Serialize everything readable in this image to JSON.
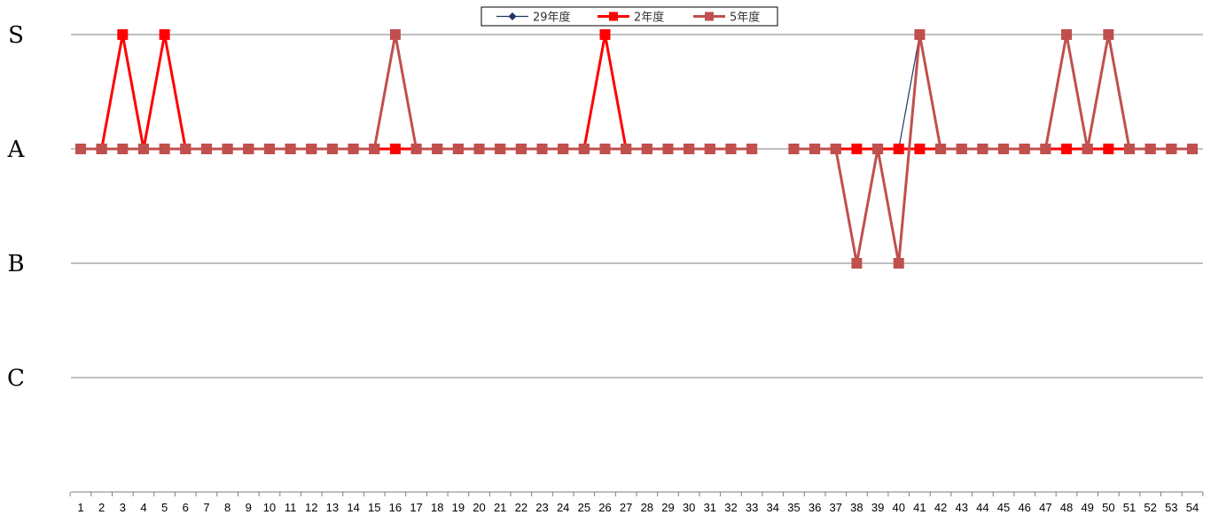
{
  "chart_data": {
    "type": "line",
    "y_categories": [
      "S",
      "A",
      "B",
      "C"
    ],
    "y_values_key": {
      "S": 3,
      "A": 2,
      "B": 1,
      "C": 0
    },
    "ylim": [
      -1,
      3
    ],
    "grid": true,
    "legend_position": "top-center",
    "x": [
      1,
      2,
      3,
      4,
      5,
      6,
      7,
      8,
      9,
      10,
      11,
      12,
      13,
      14,
      15,
      16,
      17,
      18,
      19,
      20,
      21,
      22,
      23,
      24,
      25,
      26,
      27,
      28,
      29,
      30,
      31,
      32,
      33,
      34,
      35,
      36,
      37,
      38,
      39,
      40,
      41,
      42,
      43,
      44,
      45,
      46,
      47,
      48,
      49,
      50,
      51,
      52,
      53,
      54
    ],
    "series": [
      {
        "name": "29年度",
        "color": "#1f3864",
        "marker": "diamond",
        "line_width": 1.2,
        "values": [
          2,
          2,
          2,
          2,
          2,
          2,
          2,
          2,
          2,
          2,
          2,
          2,
          2,
          2,
          2,
          2,
          2,
          2,
          2,
          2,
          2,
          2,
          2,
          2,
          2,
          2,
          2,
          2,
          2,
          2,
          2,
          2,
          2,
          null,
          2,
          2,
          2,
          2,
          2,
          2,
          3,
          2,
          2,
          2,
          2,
          2,
          2,
          2,
          2,
          2,
          2,
          2,
          2,
          2
        ]
      },
      {
        "name": "2年度",
        "color": "#ff0000",
        "marker": "square",
        "line_width": 3,
        "values": [
          2,
          2,
          3,
          2,
          3,
          2,
          2,
          2,
          2,
          2,
          2,
          2,
          2,
          2,
          2,
          2,
          2,
          2,
          2,
          2,
          2,
          2,
          2,
          2,
          2,
          3,
          2,
          2,
          2,
          2,
          2,
          2,
          2,
          null,
          2,
          2,
          2,
          2,
          2,
          2,
          2,
          2,
          2,
          2,
          2,
          2,
          2,
          2,
          2,
          2,
          2,
          2,
          2,
          2
        ]
      },
      {
        "name": "5年度",
        "color": "#c0504d",
        "marker": "square",
        "line_width": 3,
        "values": [
          2,
          2,
          2,
          2,
          2,
          2,
          2,
          2,
          2,
          2,
          2,
          2,
          2,
          2,
          2,
          3,
          2,
          2,
          2,
          2,
          2,
          2,
          2,
          2,
          2,
          2,
          2,
          2,
          2,
          2,
          2,
          2,
          2,
          null,
          2,
          2,
          2,
          1,
          2,
          1,
          3,
          2,
          2,
          2,
          2,
          2,
          2,
          3,
          2,
          3,
          2,
          2,
          2,
          2
        ]
      }
    ]
  }
}
